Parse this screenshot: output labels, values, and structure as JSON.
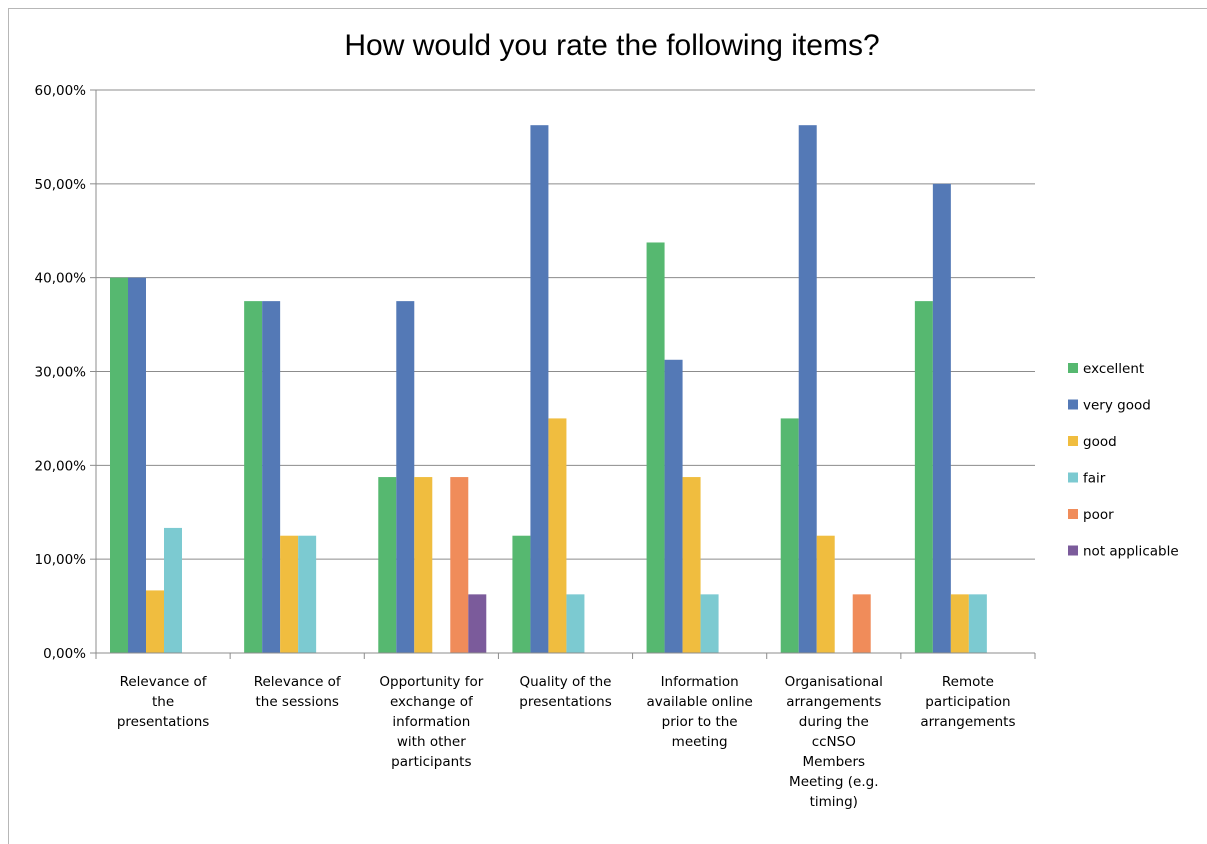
{
  "chart_data": {
    "type": "bar",
    "title": "How would you rate the following items?",
    "xlabel": "",
    "ylabel": "",
    "ylim": [
      0,
      60
    ],
    "y_ticks": [
      "0,00%",
      "10,00%",
      "20,00%",
      "30,00%",
      "40,00%",
      "50,00%",
      "60,00%"
    ],
    "grid": true,
    "legend_position": "right",
    "categories": [
      [
        "Relevance of",
        "the",
        "presentations"
      ],
      [
        "Relevance of",
        "the sessions"
      ],
      [
        "Opportunity for",
        "exchange of",
        "information",
        "with other",
        "participants"
      ],
      [
        "Quality of the",
        "presentations"
      ],
      [
        "Information",
        "available online",
        "prior to the",
        "meeting"
      ],
      [
        "Organisational",
        "arrangements",
        "during the",
        "ccNSO",
        "Members",
        "Meeting (e.g.",
        "timing)"
      ],
      [
        "Remote",
        "participation",
        "arrangements"
      ]
    ],
    "series": [
      {
        "name": "excellent",
        "color": "#56b870",
        "values": [
          40.0,
          37.5,
          18.75,
          12.5,
          43.75,
          25.0,
          37.5
        ]
      },
      {
        "name": "very good",
        "color": "#5479b6",
        "values": [
          40.0,
          37.5,
          37.5,
          56.25,
          31.25,
          56.25,
          50.0
        ]
      },
      {
        "name": "good",
        "color": "#f0bd3f",
        "values": [
          6.67,
          12.5,
          18.75,
          25.0,
          18.75,
          12.5,
          6.25
        ]
      },
      {
        "name": "fair",
        "color": "#7ccad1",
        "values": [
          13.33,
          12.5,
          0,
          6.25,
          6.25,
          0,
          6.25
        ]
      },
      {
        "name": "poor",
        "color": "#f08c5a",
        "values": [
          0,
          0,
          18.75,
          0,
          0,
          6.25,
          0
        ]
      },
      {
        "name": "not applicable",
        "color": "#7b5b9b",
        "values": [
          0,
          0,
          6.25,
          0,
          0,
          0,
          0
        ]
      }
    ]
  }
}
